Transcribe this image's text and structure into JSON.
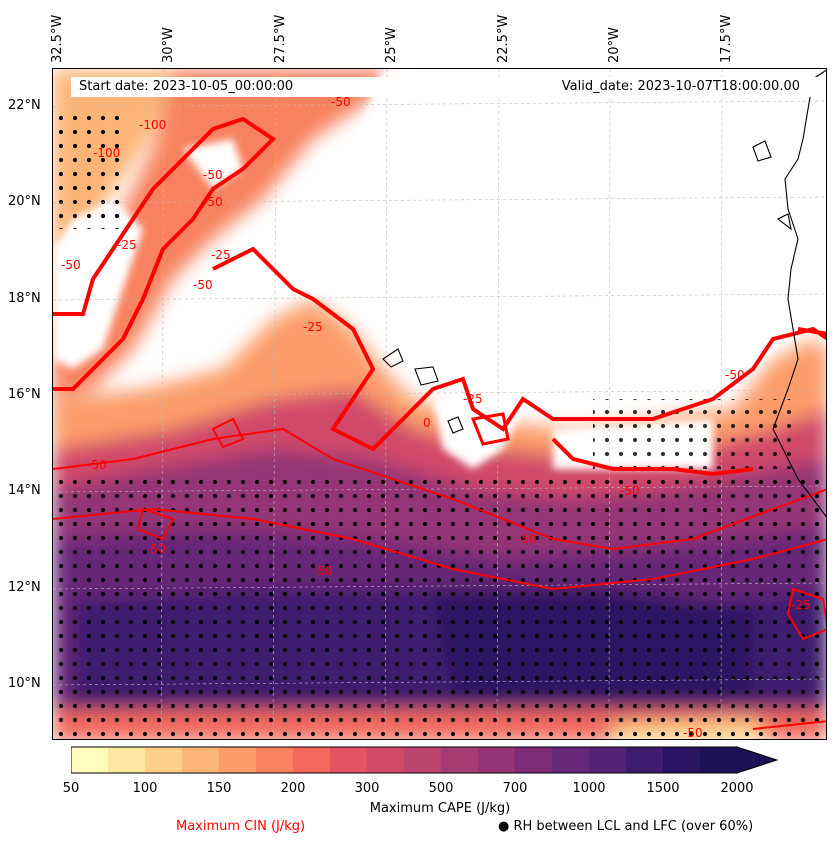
{
  "map": {
    "lon_labels": [
      "32.5°W",
      "30°W",
      "27.5°W",
      "25°W",
      "22.5°W",
      "20°W",
      "17.5°W"
    ],
    "lat_labels": [
      "22°N",
      "20°N",
      "18°N",
      "16°N",
      "14°N",
      "12°N",
      "10°N"
    ],
    "start_date": "Start date: 2023-10-05_00:00:00",
    "valid_date": "Valid_date: 2023-10-07T18:00:00.00",
    "cin_contour_labels": [
      "-50",
      "-50",
      "-50",
      "-50",
      "-50",
      "-50",
      "-50",
      "-50",
      "-50",
      "-50",
      "-50",
      "-25",
      "-25",
      "-25",
      "-25",
      "-100",
      "-100",
      "-50",
      "0",
      "-25"
    ],
    "colors": {
      "cin_contour": "#ff0000",
      "coast": "#000000",
      "rh_dot": "#000000"
    }
  },
  "colorbar": {
    "tick_labels": [
      "50",
      "100",
      "150",
      "200",
      "300",
      "500",
      "700",
      "1000",
      "1500",
      "2000"
    ],
    "cape_label": "Maximum CAPE (J/kg)",
    "cin_label": "Maximum CIN (J/kg)",
    "rh_label": "● RH between LCL and LFC (over 60%)",
    "colors": [
      "#fffcbd",
      "#fee6a0",
      "#fecf88",
      "#fdb577",
      "#fc9d6a",
      "#f8825f",
      "#f1695d",
      "#e35564",
      "#d14a6a",
      "#bd436f",
      "#a73b74",
      "#933476",
      "#7d2d78",
      "#682778",
      "#532175",
      "#3f1b6e",
      "#291462",
      "#1c1152"
    ]
  }
}
